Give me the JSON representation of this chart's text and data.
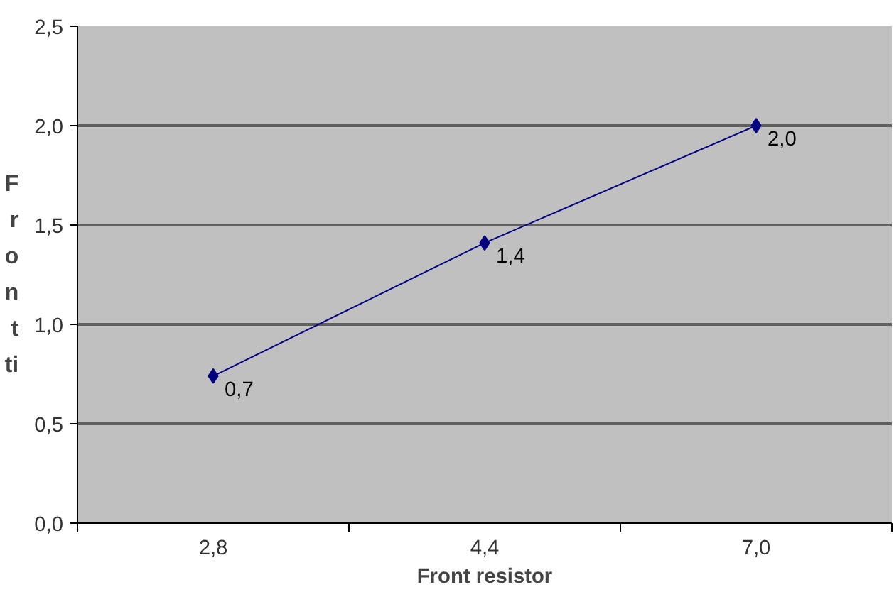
{
  "chart_data": {
    "type": "line",
    "categories": [
      "2,8",
      "4,4",
      "7,0"
    ],
    "series": [
      {
        "color": "#000080",
        "values": [
          0.74,
          1.41,
          2.0
        ],
        "value_labels": [
          "0,7",
          "1,4",
          "2,0"
        ]
      }
    ],
    "xlabel": "Front resistor",
    "ylabel": "F\nr\no\nn\nt\nti",
    "ylim": [
      0,
      2.5
    ],
    "yticks": [
      {
        "value": 0,
        "label": "0,0"
      },
      {
        "value": 0.5,
        "label": "0,5"
      },
      {
        "value": 1,
        "label": "1,0"
      },
      {
        "value": 1.5,
        "label": "1,5"
      },
      {
        "value": 2,
        "label": "2,0"
      },
      {
        "value": 2.5,
        "label": "2,5"
      }
    ],
    "grid": "y",
    "marker": "diamond",
    "line_style": "solid"
  }
}
